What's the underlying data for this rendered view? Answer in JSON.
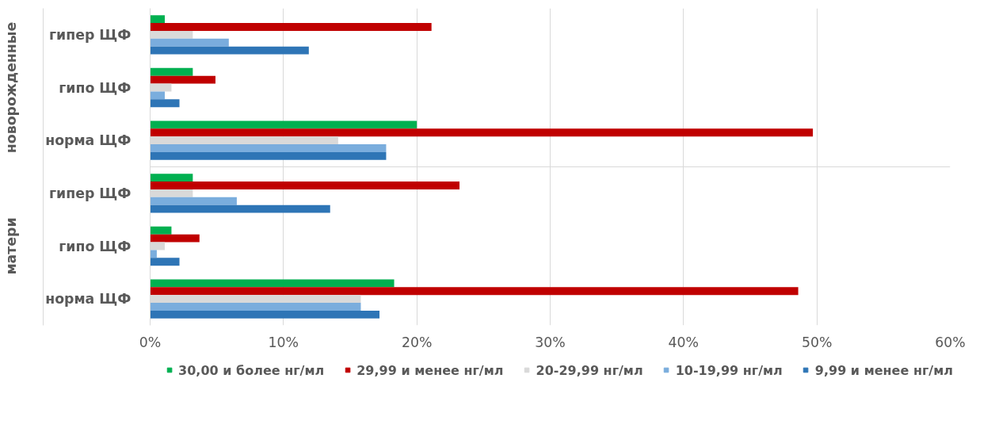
{
  "chart_data": {
    "type": "bar",
    "orientation": "horizontal",
    "categories": [
      "гипер ЩФ",
      "гипо ЩФ",
      "норма ЩФ",
      "гипер ЩФ",
      "гипо ЩФ",
      "норма ЩФ"
    ],
    "annotations": [
      "новорожденные",
      "матери"
    ],
    "series": [
      {
        "name": "30,00 и более нг/мл",
        "color": "#00b050",
        "values": [
          1.1,
          3.2,
          20.0,
          3.2,
          1.6,
          18.3
        ]
      },
      {
        "name": "29,99 и менее нг/мл",
        "color": "#c00000",
        "values": [
          21.1,
          4.9,
          49.7,
          23.2,
          3.7,
          48.6
        ]
      },
      {
        "name": "20-29,99 нг/мл",
        "color": "#d9d9d9",
        "values": [
          3.2,
          1.6,
          14.1,
          3.2,
          1.1,
          15.8
        ]
      },
      {
        "name": "10-19,99 нг/мл",
        "color": "#7aaddd",
        "values": [
          5.9,
          1.1,
          17.7,
          6.5,
          0.5,
          15.8
        ]
      },
      {
        "name": "9,99 и менее нг/мл",
        "color": "#2e75b6",
        "values": [
          11.9,
          2.2,
          17.7,
          13.5,
          2.2,
          17.2
        ]
      }
    ],
    "xlim": [
      0,
      60
    ],
    "xticks": [
      {
        "value": 0,
        "label": "0%"
      },
      {
        "value": 10,
        "label": "10%"
      },
      {
        "value": 20,
        "label": "20%"
      },
      {
        "value": 30,
        "label": "30%"
      },
      {
        "value": 40,
        "label": "40%"
      },
      {
        "value": 50,
        "label": "50%"
      },
      {
        "value": 60,
        "label": "60%"
      }
    ],
    "grid": "x",
    "legend": "bottom"
  }
}
